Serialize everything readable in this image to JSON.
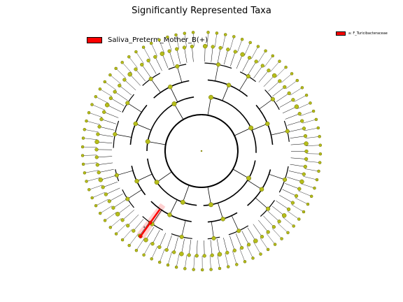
{
  "chart_data": {
    "type": "cladogram",
    "title": "Significantly Represented Taxa",
    "group_legend": [
      {
        "label": "Saliva_Preterm_Mother_B(+)",
        "color": "#ff0000"
      }
    ],
    "clade_legend": [
      {
        "key": "a",
        "label": "a: F_Turicibacteraceae",
        "color": "#ff0000"
      }
    ],
    "highlighted_clades": [
      {
        "key": "a",
        "label": "a",
        "color": "#ff0000"
      }
    ],
    "colors": {
      "node": "#b5bd1a",
      "node_edge": "#6b6b00",
      "highlight": "#ff0000",
      "branch": "#000000"
    }
  }
}
